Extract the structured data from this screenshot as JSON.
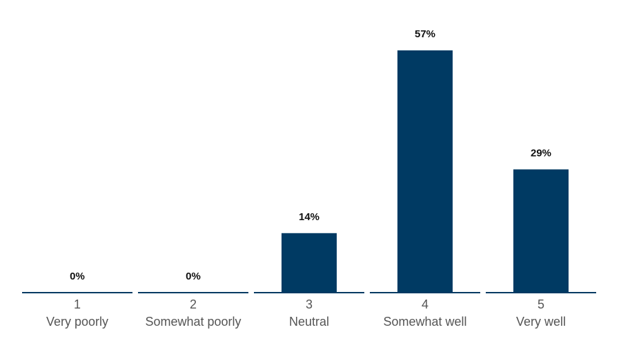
{
  "chart_data": {
    "type": "bar",
    "categories": [
      {
        "number": "1",
        "label": "Very poorly"
      },
      {
        "number": "2",
        "label": "Somewhat poorly"
      },
      {
        "number": "3",
        "label": "Neutral"
      },
      {
        "number": "4",
        "label": "Somewhat well"
      },
      {
        "number": "5",
        "label": "Very well"
      }
    ],
    "values": [
      0,
      0,
      14,
      57,
      29
    ],
    "value_labels": [
      "0%",
      "0%",
      "14%",
      "57%",
      "29%"
    ],
    "title": "",
    "xlabel": "",
    "ylabel": "",
    "ylim": [
      0,
      57
    ],
    "grid": false,
    "colors": {
      "bar": "#003a63",
      "baseline": "#003a63",
      "data_label": "#111111",
      "tick_text": "#555555"
    }
  }
}
